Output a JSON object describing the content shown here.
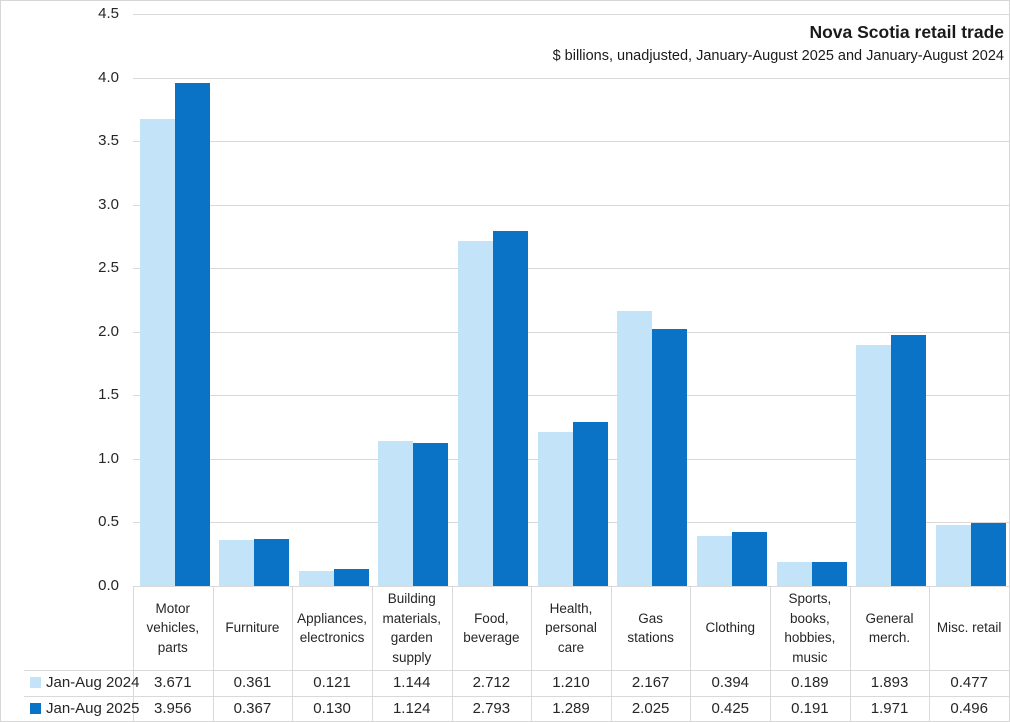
{
  "chart_data": {
    "type": "bar",
    "title": "Nova Scotia retail trade",
    "subtitle": "$ billions, unadjusted, January-August 2025 and January-August 2024",
    "categories": [
      "Motor vehicles, parts",
      "Furniture",
      "Appliances, electronics",
      "Building materials, garden supply",
      "Food, beverage",
      "Health, personal care",
      "Gas stations",
      "Clothing",
      "Sports, books, hobbies, music",
      "General merch.",
      "Misc. retail"
    ],
    "category_label_lines": [
      [
        "Motor",
        "vehicles,",
        "parts"
      ],
      [
        "Furniture"
      ],
      [
        "Appliances,",
        "electronics"
      ],
      [
        "Building",
        "materials,",
        "garden",
        "supply"
      ],
      [
        "Food,",
        "beverage"
      ],
      [
        "Health,",
        "personal",
        "care"
      ],
      [
        "Gas",
        "stations"
      ],
      [
        "Clothing"
      ],
      [
        "Sports,",
        "books,",
        "hobbies,",
        "music"
      ],
      [
        "General",
        "merch."
      ],
      [
        "Misc. retail"
      ]
    ],
    "series": [
      {
        "name": "Jan-Aug 2024",
        "color": "#c3e3f9",
        "values": [
          3.671,
          0.361,
          0.121,
          1.144,
          2.712,
          1.21,
          2.167,
          0.394,
          0.189,
          1.893,
          0.477
        ]
      },
      {
        "name": "Jan-Aug 2025",
        "color": "#0b73c6",
        "values": [
          3.956,
          0.367,
          0.13,
          1.124,
          2.793,
          1.289,
          2.025,
          0.425,
          0.191,
          1.971,
          0.496
        ]
      }
    ],
    "ylim": [
      0,
      4.5
    ],
    "ytick_step": 0.5,
    "ytick_decimals": 1,
    "value_decimals": 3,
    "grid": true,
    "legend_position": "bottom-left-data-table",
    "colors": {
      "gridline": "#d9d9d9",
      "table_border": "#d9d9d9",
      "text": "#262626"
    }
  }
}
